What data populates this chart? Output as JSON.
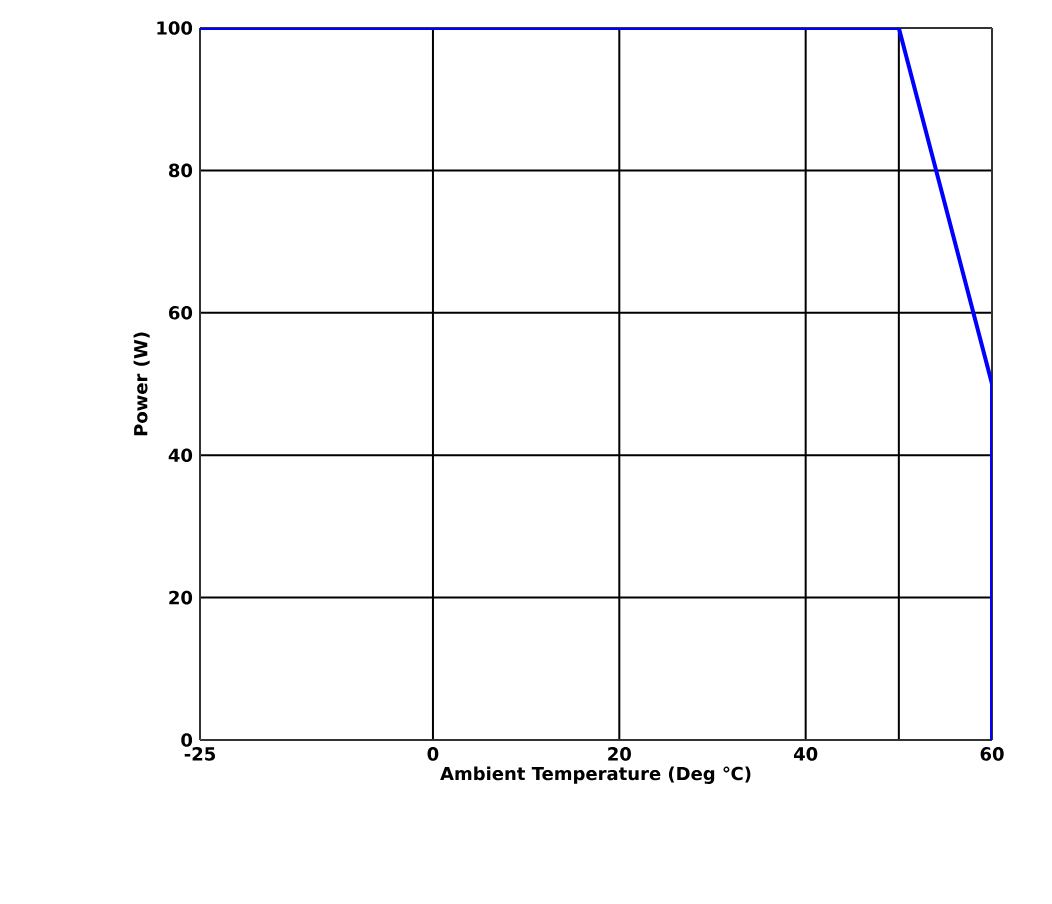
{
  "chart_data": {
    "type": "line",
    "xlabel": "Ambient Temperature (Deg ℃)",
    "ylabel": "Power (W)",
    "x": [
      -25,
      50,
      60,
      60
    ],
    "series": [
      {
        "color": "#0000ff",
        "values": [
          100,
          100,
          50,
          0
        ]
      }
    ],
    "xlim": [
      -25,
      60
    ],
    "ylim": [
      0,
      100
    ],
    "xticks": [
      -25,
      0,
      20,
      40,
      {
        "value": 50,
        "label": null
      },
      60
    ],
    "yticks": [
      0,
      20,
      40,
      60,
      80,
      100
    ],
    "grid": true,
    "marker": "none",
    "line_style": "solid"
  }
}
